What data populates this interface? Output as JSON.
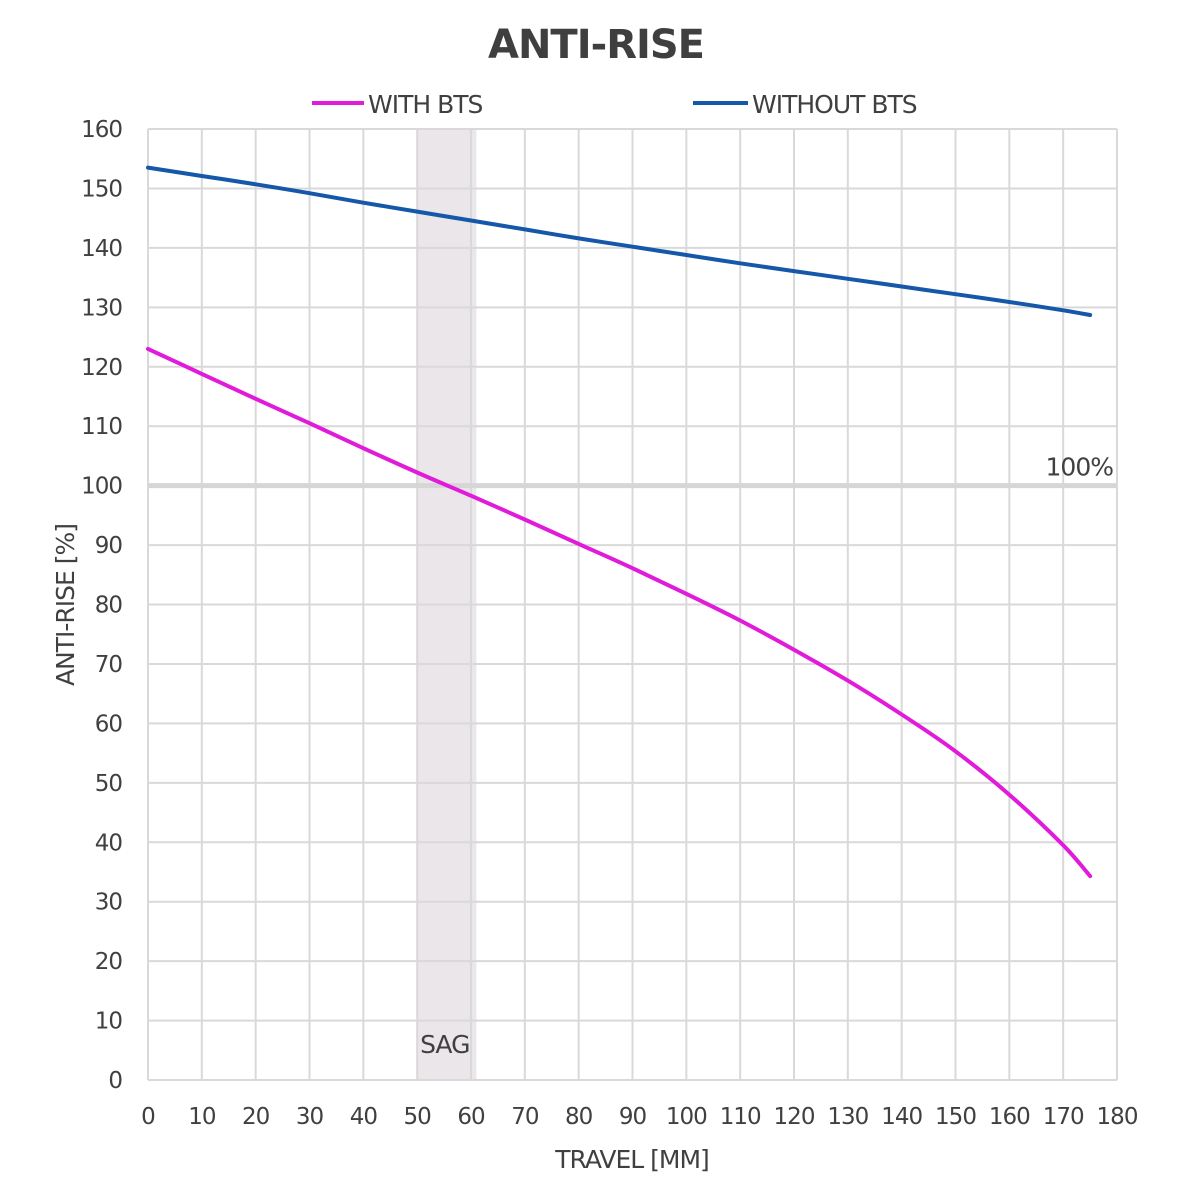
{
  "chart_data": {
    "type": "line",
    "title": "ANTI-RISE",
    "xlabel": "TRAVEL [MM]",
    "ylabel": "ANTI-RISE [%]",
    "xlim": [
      0,
      180
    ],
    "ylim": [
      0,
      160
    ],
    "x_ticks": [
      0,
      10,
      20,
      30,
      40,
      50,
      60,
      70,
      80,
      90,
      100,
      110,
      120,
      130,
      140,
      150,
      160,
      170,
      180
    ],
    "y_ticks": [
      0,
      10,
      20,
      30,
      40,
      50,
      60,
      70,
      80,
      90,
      100,
      110,
      120,
      130,
      140,
      150,
      160
    ],
    "grid": true,
    "legend_position": "top",
    "series": [
      {
        "name": "WITH BTS",
        "color": "#e01bd9",
        "x": [
          0,
          10,
          20,
          30,
          40,
          50,
          60,
          70,
          80,
          90,
          100,
          110,
          120,
          130,
          140,
          150,
          160,
          170,
          175
        ],
        "y": [
          123,
          118.8,
          114.6,
          110.5,
          106.3,
          102.2,
          98.3,
          94.3,
          90.2,
          86.1,
          81.8,
          77.3,
          72.4,
          67.2,
          61.5,
          55.3,
          48,
          39.5,
          34.3
        ]
      },
      {
        "name": "WITHOUT BTS",
        "color": "#1557a8",
        "x": [
          0,
          10,
          20,
          30,
          40,
          50,
          60,
          70,
          80,
          90,
          100,
          110,
          120,
          130,
          140,
          150,
          160,
          170,
          175
        ],
        "y": [
          153.5,
          152.1,
          150.7,
          149.2,
          147.6,
          146.1,
          144.6,
          143.1,
          141.6,
          140.2,
          138.8,
          137.4,
          136.1,
          134.8,
          133.5,
          132.2,
          130.9,
          129.5,
          128.7
        ]
      }
    ],
    "annotations": [
      {
        "type": "band",
        "axis": "x",
        "from": 50,
        "to": 61,
        "label": "SAG",
        "color": "#eae6ea"
      },
      {
        "type": "hline",
        "axis": "y",
        "value": 100,
        "label": "100%",
        "color": "#d6d6d6"
      }
    ]
  }
}
